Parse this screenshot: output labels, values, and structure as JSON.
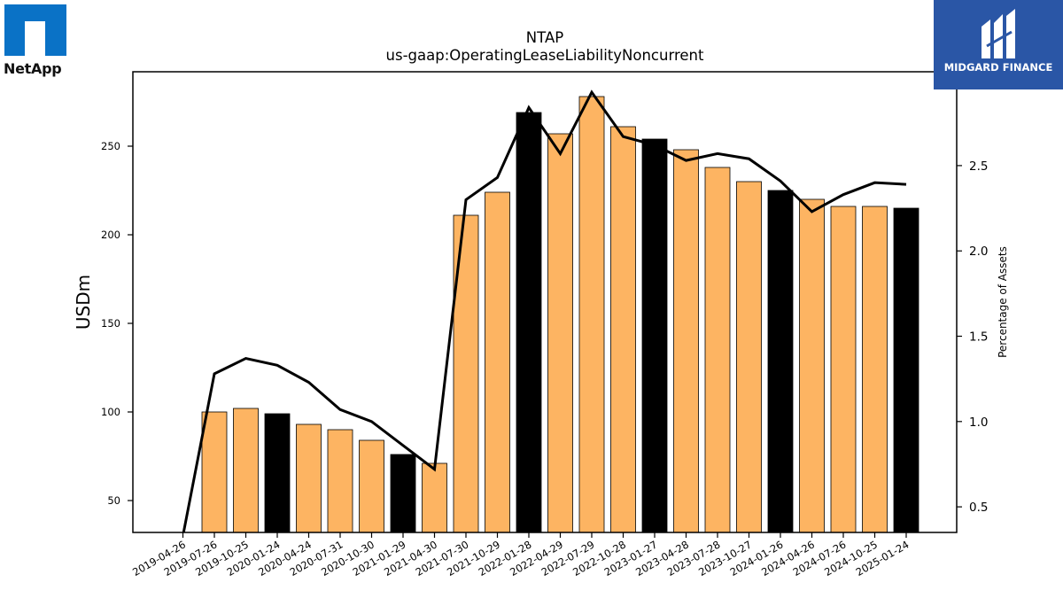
{
  "logos": {
    "left_text": "NetApp",
    "right_text": "MIDGARD FINANCE"
  },
  "colors": {
    "bar_highlight": "#000000",
    "bar_default": "#fdb462",
    "line": "#000000",
    "netapp_blue": "#0a72c6",
    "midgard_blue": "#2a56a6"
  },
  "chart_data": {
    "type": "bar",
    "title": "NTAP",
    "subtitle": "us-gaap:OperatingLeaseLiabilityNoncurrent",
    "ylabel": "USDm",
    "y2label": "Percentage of Assets",
    "ylim": [
      32,
      292
    ],
    "y2lim": [
      0.35,
      3.05
    ],
    "yticks": [
      50,
      100,
      150,
      200,
      250
    ],
    "y2ticks": [
      0.5,
      1.0,
      1.5,
      2.0,
      2.5
    ],
    "categories": [
      "2019-04-26",
      "2019-07-26",
      "2019-10-25",
      "2020-01-24",
      "2020-04-24",
      "2020-07-31",
      "2020-10-30",
      "2021-01-29",
      "2021-04-30",
      "2021-07-30",
      "2021-10-29",
      "2022-01-28",
      "2022-04-29",
      "2022-07-29",
      "2022-10-28",
      "2023-01-27",
      "2023-04-28",
      "2023-07-28",
      "2023-10-27",
      "2024-01-26",
      "2024-04-26",
      "2024-07-26",
      "2024-10-25",
      "2025-01-24"
    ],
    "series": [
      {
        "type": "bar",
        "values": [
          null,
          100,
          102,
          99,
          93,
          90,
          84,
          76,
          71,
          211,
          224,
          269,
          257,
          278,
          261,
          254,
          248,
          238,
          230,
          225,
          220,
          216,
          216,
          215
        ],
        "highlight": [
          false,
          false,
          false,
          true,
          false,
          false,
          false,
          true,
          false,
          false,
          false,
          true,
          false,
          false,
          false,
          true,
          false,
          false,
          false,
          true,
          false,
          false,
          false,
          true
        ]
      },
      {
        "type": "line",
        "axis": "right",
        "values": [
          0.33,
          1.28,
          1.37,
          1.33,
          1.23,
          1.07,
          1.0,
          0.86,
          0.72,
          2.3,
          2.43,
          2.84,
          2.57,
          2.93,
          2.67,
          2.62,
          2.53,
          2.57,
          2.54,
          2.41,
          2.23,
          2.33,
          2.4,
          2.39
        ]
      }
    ],
    "grid": false,
    "legend": "none"
  }
}
